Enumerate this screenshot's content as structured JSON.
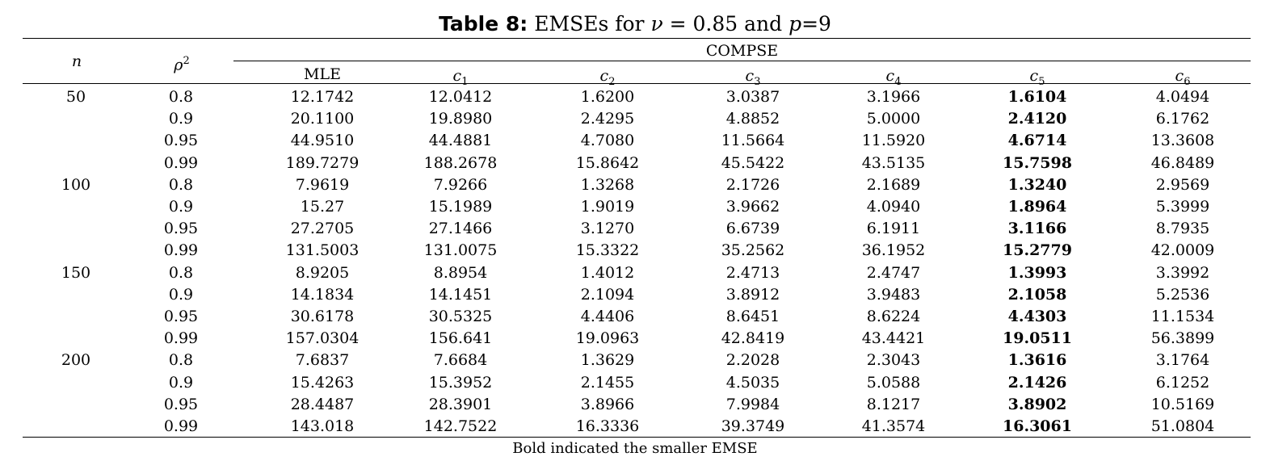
{
  "title": {
    "label": "Table 8:",
    "text_prefix": "EMSEs for ",
    "nu_symbol": "ν",
    "nu_equals": " = 0.85 and ",
    "p_symbol": "p",
    "p_equals": "=9"
  },
  "header": {
    "n": "n",
    "rho_base": "ρ",
    "rho_exp": "2",
    "group": "COMPSE",
    "mle": "MLE",
    "c_letter": "c",
    "c_subs": [
      "1",
      "2",
      "3",
      "4",
      "5",
      "6"
    ]
  },
  "rows": [
    {
      "n": "50",
      "rho": "0.8",
      "vals": [
        "12.1742",
        "12.0412",
        "1.6200",
        "3.0387",
        "3.1966",
        "1.6104",
        "4.0494"
      ]
    },
    {
      "n": "",
      "rho": "0.9",
      "vals": [
        "20.1100",
        "19.8980",
        "2.4295",
        "4.8852",
        "5.0000",
        "2.4120",
        "6.1762"
      ]
    },
    {
      "n": "",
      "rho": "0.95",
      "vals": [
        "44.9510",
        "44.4881",
        "4.7080",
        "11.5664",
        "11.5920",
        "4.6714",
        "13.3608"
      ]
    },
    {
      "n": "",
      "rho": "0.99",
      "vals": [
        "189.7279",
        "188.2678",
        "15.8642",
        "45.5422",
        "43.5135",
        "15.7598",
        "46.8489"
      ]
    },
    {
      "n": "100",
      "rho": "0.8",
      "vals": [
        "7.9619",
        "7.9266",
        "1.3268",
        "2.1726",
        "2.1689",
        "1.3240",
        "2.9569"
      ]
    },
    {
      "n": "",
      "rho": "0.9",
      "vals": [
        "15.27",
        "15.1989",
        "1.9019",
        "3.9662",
        "4.0940",
        "1.8964",
        "5.3999"
      ]
    },
    {
      "n": "",
      "rho": "0.95",
      "vals": [
        "27.2705",
        "27.1466",
        "3.1270",
        "6.6739",
        "6.1911",
        "3.1166",
        "8.7935"
      ]
    },
    {
      "n": "",
      "rho": "0.99",
      "vals": [
        "131.5003",
        "131.0075",
        "15.3322",
        "35.2562",
        "36.1952",
        "15.2779",
        "42.0009"
      ]
    },
    {
      "n": "150",
      "rho": "0.8",
      "vals": [
        "8.9205",
        "8.8954",
        "1.4012",
        "2.4713",
        "2.4747",
        "1.3993",
        "3.3992"
      ]
    },
    {
      "n": "",
      "rho": "0.9",
      "vals": [
        "14.1834",
        "14.1451",
        "2.1094",
        "3.8912",
        "3.9483",
        "2.1058",
        "5.2536"
      ]
    },
    {
      "n": "",
      "rho": "0.95",
      "vals": [
        "30.6178",
        "30.5325",
        "4.4406",
        "8.6451",
        "8.6224",
        "4.4303",
        "11.1534"
      ]
    },
    {
      "n": "",
      "rho": "0.99",
      "vals": [
        "157.0304",
        "156.641",
        "19.0963",
        "42.8419",
        "43.4421",
        "19.0511",
        "56.3899"
      ]
    },
    {
      "n": "200",
      "rho": "0.8",
      "vals": [
        "7.6837",
        "7.6684",
        "1.3629",
        "2.2028",
        "2.3043",
        "1.3616",
        "3.1764"
      ]
    },
    {
      "n": "",
      "rho": "0.9",
      "vals": [
        "15.4263",
        "15.3952",
        "2.1455",
        "4.5035",
        "5.0588",
        "2.1426",
        "6.1252"
      ]
    },
    {
      "n": "",
      "rho": "0.95",
      "vals": [
        "28.4487",
        "28.3901",
        "3.8966",
        "7.9984",
        "8.1217",
        "3.8902",
        "10.5169"
      ]
    },
    {
      "n": "",
      "rho": "0.99",
      "vals": [
        "143.018",
        "142.7522",
        "16.3336",
        "39.3749",
        "41.3574",
        "16.3061",
        "51.0804"
      ]
    }
  ],
  "bold_column_index": 5,
  "note": "Bold indicated the smaller EMSE"
}
